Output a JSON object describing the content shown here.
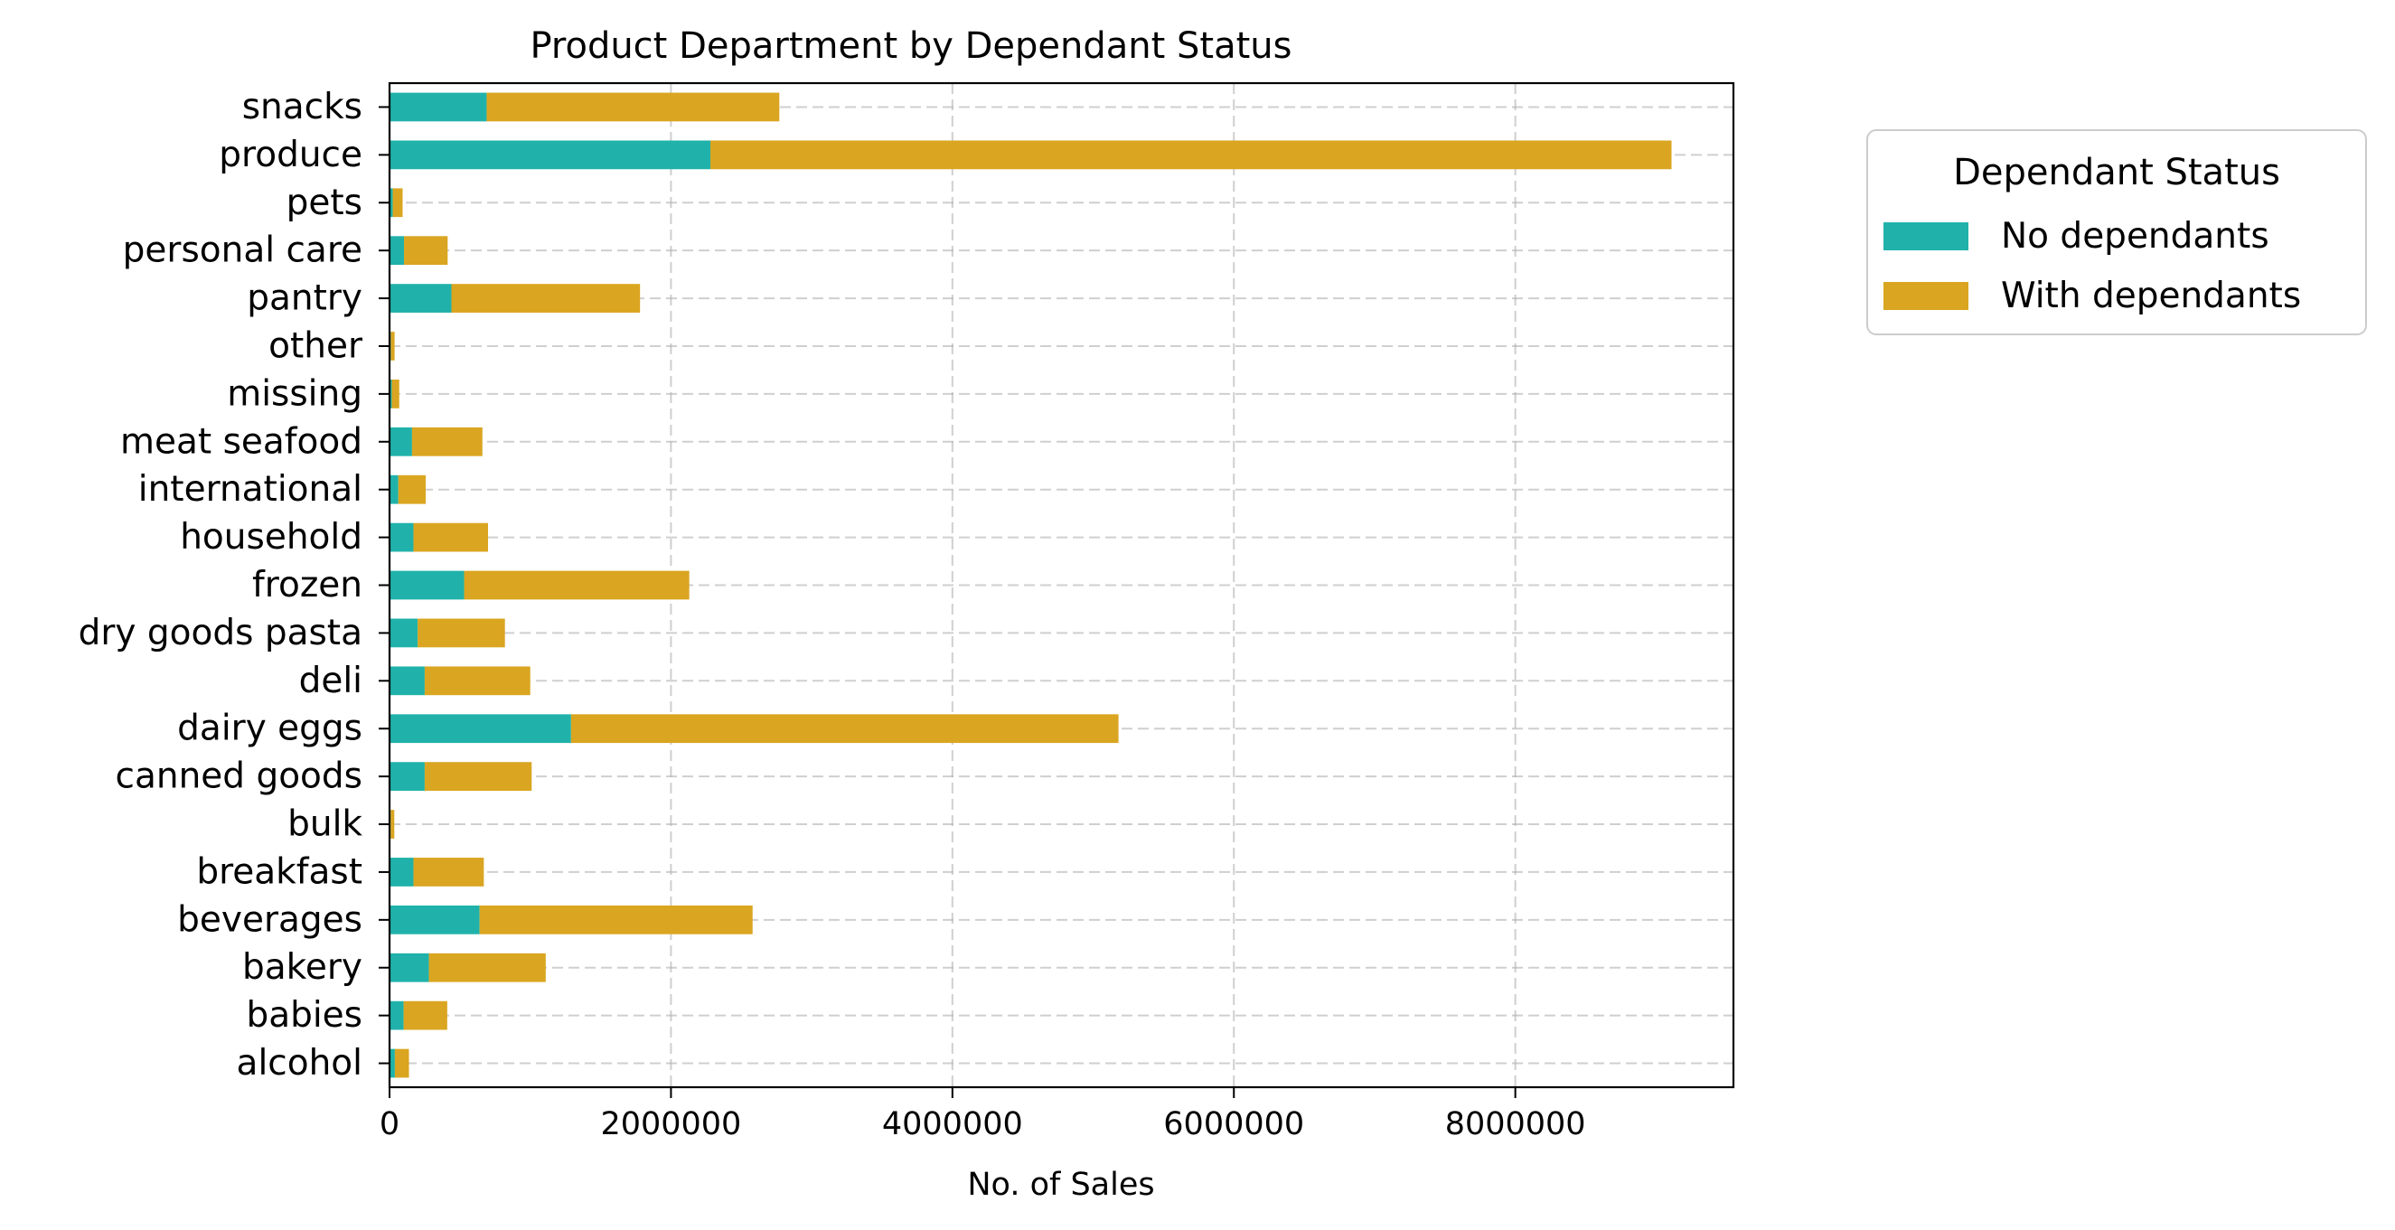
{
  "chart_data": {
    "type": "bar",
    "orientation": "horizontal",
    "stacked": true,
    "title": "Product Department by Dependant Status",
    "xlabel": "No. of Sales",
    "ylabel": "",
    "xlim": [
      0,
      9550000
    ],
    "xticks": [
      0,
      2000000,
      4000000,
      6000000,
      8000000
    ],
    "xtick_labels": [
      "0",
      "2000000",
      "4000000",
      "6000000",
      "8000000"
    ],
    "grid": true,
    "legend": {
      "title": "Dependant Status",
      "placement": "outside-right-top"
    },
    "categories": [
      "alcohol",
      "babies",
      "bakery",
      "beverages",
      "breakfast",
      "bulk",
      "canned goods",
      "dairy eggs",
      "deli",
      "dry goods pasta",
      "frozen",
      "household",
      "international",
      "meat seafood",
      "missing",
      "other",
      "pantry",
      "personal care",
      "pets",
      "produce",
      "snacks"
    ],
    "series": [
      {
        "name": "No dependants",
        "color": "#20b2aa",
        "values": [
          38000,
          100000,
          280000,
          640000,
          170000,
          8000,
          250000,
          1290000,
          250000,
          200000,
          530000,
          170000,
          62000,
          160000,
          16000,
          9000,
          440000,
          103000,
          23000,
          2280000,
          690000
        ]
      },
      {
        "name": "With dependants",
        "color": "#daa520",
        "values": [
          100000,
          310000,
          830000,
          1940000,
          500000,
          26000,
          760000,
          3890000,
          750000,
          620000,
          1600000,
          530000,
          195000,
          500000,
          53000,
          27000,
          1340000,
          310000,
          70000,
          6830000,
          2080000
        ]
      }
    ]
  }
}
